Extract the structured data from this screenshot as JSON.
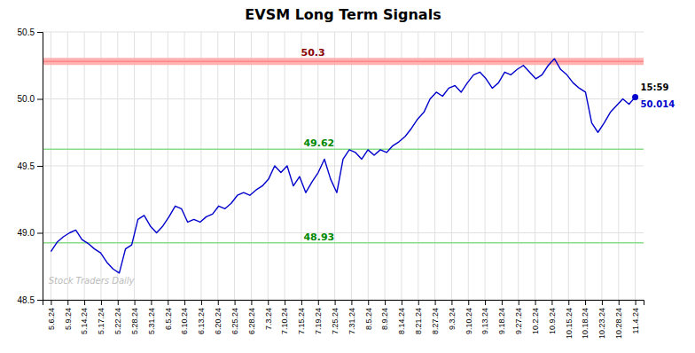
{
  "chart_data": {
    "type": "line",
    "title": "EVSM Long Term Signals",
    "grid": true,
    "color": "#0000cc",
    "xlim": [
      -0.5,
      35.5
    ],
    "xticks": [
      {
        "value": 0,
        "label": "5.6.24"
      },
      {
        "value": 1,
        "label": "5.9.24"
      },
      {
        "value": 2,
        "label": "5.14.24"
      },
      {
        "value": 3,
        "label": "5.17.24"
      },
      {
        "value": 4,
        "label": "5.22.24"
      },
      {
        "value": 5,
        "label": "5.28.24"
      },
      {
        "value": 6,
        "label": "5.31.24"
      },
      {
        "value": 7,
        "label": "6.5.24"
      },
      {
        "value": 8,
        "label": "6.10.24"
      },
      {
        "value": 9,
        "label": "6.13.24"
      },
      {
        "value": 10,
        "label": "6.20.24"
      },
      {
        "value": 11,
        "label": "6.25.24"
      },
      {
        "value": 12,
        "label": "6.28.24"
      },
      {
        "value": 13,
        "label": "7.3.24"
      },
      {
        "value": 14,
        "label": "7.10.24"
      },
      {
        "value": 15,
        "label": "7.15.24"
      },
      {
        "value": 16,
        "label": "7.19.24"
      },
      {
        "value": 17,
        "label": "7.25.24"
      },
      {
        "value": 18,
        "label": "7.31.24"
      },
      {
        "value": 19,
        "label": "8.5.24"
      },
      {
        "value": 20,
        "label": "8.9.24"
      },
      {
        "value": 21,
        "label": "8.14.24"
      },
      {
        "value": 22,
        "label": "8.21.24"
      },
      {
        "value": 23,
        "label": "8.27.24"
      },
      {
        "value": 24,
        "label": "9.3.24"
      },
      {
        "value": 25,
        "label": "9.10.24"
      },
      {
        "value": 26,
        "label": "9.13.24"
      },
      {
        "value": 27,
        "label": "9.18.24"
      },
      {
        "value": 28,
        "label": "9.27.24"
      },
      {
        "value": 29,
        "label": "10.2.24"
      },
      {
        "value": 30,
        "label": "10.9.24"
      },
      {
        "value": 31,
        "label": "10.15.24"
      },
      {
        "value": 32,
        "label": "10.18.24"
      },
      {
        "value": 33,
        "label": "10.23.24"
      },
      {
        "value": 34,
        "label": "10.28.24"
      },
      {
        "value": 35,
        "label": "11.4.24"
      }
    ],
    "ylim": [
      48.5,
      50.5
    ],
    "yticks": [
      48.5,
      {
        "value": 49.0,
        "label": "49.0"
      },
      49.5,
      {
        "value": 50.0,
        "label": "50.0"
      },
      50.5
    ],
    "x": [
      0,
      0.3723404255,
      0.7446808511,
      1.1170212766,
      1.4893617021,
      1.8617021277,
      2.2340425532,
      2.6063829787,
      2.9787234043,
      3.3510638298,
      3.7234042553,
      4.0957446809,
      4.4680851064,
      4.8404255319,
      5.2127659574,
      5.585106383,
      5.9574468085,
      6.329787234,
      6.7021276596,
      7.0744680851,
      7.4468085106,
      7.8191489362,
      8.1914893617,
      8.5638297872,
      8.9361702128,
      9.3085106383,
      9.6808510638,
      10.0531914894,
      10.4255319149,
      10.7978723404,
      11.170212766,
      11.5425531915,
      11.914893617,
      12.2872340426,
      12.6595744681,
      13.0319148936,
      13.4042553191,
      13.7765957447,
      14.1489361702,
      14.5212765957,
      14.8936170213,
      15.2659574468,
      15.6382978723,
      16.0106382979,
      16.3829787234,
      16.7553191489,
      17.1276595745,
      17.5,
      17.8723404255,
      18.2446808511,
      18.6170212766,
      18.9893617021,
      19.3617021277,
      19.7340425532,
      20.1063829787,
      20.4787234043,
      20.8510638298,
      21.2234042553,
      21.5957446809,
      21.9680851064,
      22.3404255319,
      22.7127659574,
      23.085106383,
      23.4574468085,
      23.829787234,
      24.2021276596,
      24.5744680851,
      24.9468085106,
      25.3191489362,
      25.6914893617,
      26.0638297872,
      26.4361702128,
      26.8085106383,
      27.1808510638,
      27.5531914894,
      27.9255319149,
      28.2978723404,
      28.670212766,
      29.0425531915,
      29.414893617,
      29.7872340426,
      30.1595744681,
      30.5319148936,
      30.9042553191,
      31.2765957447,
      31.6489361702,
      32.0212765957,
      32.3936170213,
      32.7659574468,
      33.1382978723,
      33.5106382979,
      33.8829787234,
      34.2553191489,
      34.6276595745,
      35
    ],
    "values": [
      48.86,
      48.93,
      48.97,
      49.0,
      49.02,
      48.95,
      48.92,
      48.88,
      48.85,
      48.78,
      48.73,
      48.7,
      48.88,
      48.91,
      49.1,
      49.13,
      49.05,
      49.0,
      49.05,
      49.12,
      49.2,
      49.18,
      49.08,
      49.1,
      49.08,
      49.12,
      49.14,
      49.2,
      49.18,
      49.22,
      49.28,
      49.3,
      49.28,
      49.32,
      49.35,
      49.4,
      49.5,
      49.45,
      49.5,
      49.35,
      49.42,
      49.3,
      49.38,
      49.45,
      49.55,
      49.4,
      49.3,
      49.55,
      49.62,
      49.6,
      49.55,
      49.62,
      49.58,
      49.62,
      49.6,
      49.65,
      49.68,
      49.72,
      49.78,
      49.85,
      49.9,
      50.0,
      50.05,
      50.02,
      50.08,
      50.1,
      50.05,
      50.12,
      50.18,
      50.2,
      50.15,
      50.08,
      50.12,
      50.2,
      50.18,
      50.22,
      50.25,
      50.2,
      50.15,
      50.18,
      50.25,
      50.3,
      50.22,
      50.18,
      50.12,
      50.08,
      50.05,
      49.82,
      49.75,
      49.82,
      49.9,
      49.95,
      50.0,
      49.96,
      50.014
    ],
    "reference_lines": [
      {
        "value": 50.28,
        "label": "50.3",
        "color": "#ffaaaa",
        "label_color": "#880000"
      },
      {
        "value": 49.625,
        "label": "49.62",
        "color": "#88dd88",
        "label_color": "#008800"
      },
      {
        "value": 48.925,
        "label": "48.93",
        "color": "#88dd88",
        "label_color": "#008800"
      }
    ],
    "endpoint_label": "15:59",
    "endpoint_value_label": "50.014",
    "watermark": "Stock Traders Daily"
  }
}
